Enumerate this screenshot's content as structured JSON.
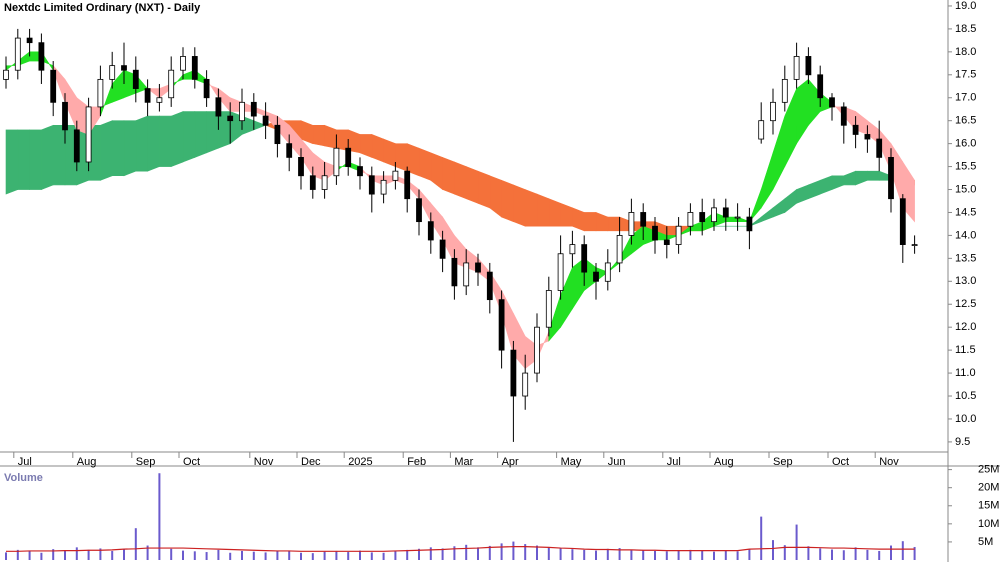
{
  "chart_data": [
    {
      "type": "candlestick",
      "title": "Nextdc Limited Ordinary (NXT) - Daily",
      "categories": [
        null,
        "Jul",
        null,
        null,
        null,
        null,
        "Aug",
        null,
        null,
        null,
        null,
        "Sep",
        null,
        null,
        null,
        "Oct",
        null,
        null,
        null,
        null,
        null,
        "Nov",
        null,
        null,
        null,
        "Dec",
        null,
        null,
        null,
        "2025",
        null,
        null,
        null,
        null,
        "Feb",
        null,
        null,
        null,
        "Mar",
        null,
        null,
        null,
        "Apr",
        null,
        null,
        null,
        null,
        "May",
        null,
        null,
        null,
        "Jun",
        null,
        null,
        null,
        null,
        "Jul",
        null,
        null,
        null,
        "Aug",
        null,
        null,
        null,
        null,
        "Sep",
        null,
        null,
        null,
        null,
        "Oct",
        null,
        null,
        null,
        "Nov",
        null,
        null,
        null
      ],
      "open": [
        17.4,
        17.6,
        18.3,
        18.2,
        17.6,
        16.9,
        16.3,
        15.6,
        16.8,
        17.4,
        17.7,
        17.6,
        17.2,
        16.9,
        17.0,
        17.6,
        17.9,
        17.4,
        17.0,
        16.6,
        16.5,
        16.9,
        16.6,
        16.4,
        16.0,
        15.7,
        15.3,
        15.0,
        15.3,
        15.9,
        15.5,
        15.3,
        14.9,
        15.2,
        15.4,
        14.8,
        14.3,
        13.9,
        13.5,
        12.9,
        13.4,
        13.2,
        12.6,
        11.5,
        10.5,
        11.0,
        12.0,
        12.8,
        13.6,
        13.8,
        13.2,
        13.0,
        13.4,
        14.0,
        14.5,
        14.2,
        13.9,
        13.8,
        14.2,
        14.5,
        14.3,
        14.6,
        14.4,
        14.4,
        16.1,
        16.5,
        16.9,
        17.4,
        17.9,
        17.5,
        17.0,
        16.8,
        16.4,
        16.2,
        16.1,
        15.7,
        14.8,
        13.8
      ],
      "high": [
        17.9,
        18.5,
        18.5,
        18.4,
        17.8,
        17.1,
        16.5,
        17.0,
        17.7,
        18.0,
        18.2,
        17.9,
        17.4,
        17.3,
        17.9,
        18.1,
        18.1,
        17.6,
        17.2,
        16.9,
        17.2,
        17.1,
        16.9,
        16.6,
        16.2,
        15.9,
        15.5,
        15.6,
        16.2,
        16.1,
        15.7,
        15.5,
        15.4,
        15.6,
        15.5,
        15.0,
        14.5,
        14.1,
        13.7,
        13.7,
        13.6,
        13.4,
        12.8,
        11.7,
        11.4,
        12.3,
        13.1,
        14.0,
        14.1,
        14.0,
        13.4,
        13.7,
        14.4,
        14.8,
        14.7,
        14.4,
        14.2,
        14.4,
        14.7,
        14.8,
        14.8,
        14.8,
        14.7,
        14.6,
        16.9,
        17.2,
        17.7,
        18.2,
        18.1,
        17.7,
        17.1,
        16.9,
        16.6,
        16.4,
        16.5,
        15.9,
        14.9,
        14.0
      ],
      "low": [
        17.2,
        17.4,
        17.9,
        17.3,
        16.6,
        16.0,
        15.4,
        15.4,
        16.6,
        17.2,
        17.3,
        16.9,
        16.6,
        16.7,
        16.8,
        17.4,
        17.2,
        16.8,
        16.3,
        16.0,
        16.3,
        16.3,
        16.1,
        15.7,
        15.4,
        15.0,
        14.8,
        14.8,
        15.1,
        15.3,
        15.0,
        14.5,
        14.7,
        15.0,
        14.5,
        14.0,
        13.6,
        13.2,
        12.6,
        12.7,
        12.9,
        12.3,
        11.1,
        9.5,
        10.2,
        10.8,
        11.8,
        12.6,
        13.3,
        12.9,
        12.6,
        12.8,
        13.2,
        13.8,
        13.9,
        13.6,
        13.5,
        13.6,
        14.0,
        14.0,
        14.1,
        14.1,
        14.1,
        13.7,
        16.0,
        16.2,
        16.7,
        17.2,
        17.3,
        16.8,
        16.5,
        16.0,
        15.9,
        15.8,
        15.4,
        14.5,
        13.4,
        13.6
      ],
      "close": [
        17.6,
        18.3,
        18.2,
        17.6,
        16.9,
        16.3,
        15.6,
        16.8,
        17.4,
        17.7,
        17.6,
        17.2,
        16.9,
        17.0,
        17.6,
        17.9,
        17.4,
        17.0,
        16.6,
        16.5,
        16.9,
        16.6,
        16.4,
        16.0,
        15.7,
        15.3,
        15.0,
        15.3,
        15.9,
        15.5,
        15.3,
        14.9,
        15.2,
        15.4,
        14.8,
        14.3,
        13.9,
        13.5,
        12.9,
        13.4,
        13.2,
        12.6,
        11.5,
        10.5,
        11.0,
        12.0,
        12.8,
        13.6,
        13.8,
        13.2,
        13.0,
        13.4,
        14.0,
        14.5,
        14.2,
        13.9,
        13.8,
        14.2,
        14.5,
        14.3,
        14.6,
        14.4,
        14.4,
        14.1,
        16.5,
        16.9,
        17.4,
        17.9,
        17.5,
        17.0,
        16.8,
        16.4,
        16.2,
        16.1,
        15.7,
        14.8,
        13.8,
        13.8
      ],
      "up_color": "#ffffff",
      "down_color": "#000000",
      "bands": [
        {
          "fast": [
            16.3,
            16.3,
            16.3,
            16.3,
            16.4,
            16.4,
            16.4,
            16.4,
            16.4,
            16.5,
            16.5,
            16.5,
            16.6,
            16.6,
            16.6,
            16.7,
            16.7,
            16.7,
            16.7,
            16.7,
            16.6,
            16.5,
            16.4,
            16.3,
            16.2,
            16.1,
            16.0,
            15.95,
            15.9,
            15.85,
            15.8,
            15.7,
            15.6,
            15.5,
            15.4,
            15.3,
            15.2,
            15.0,
            14.9,
            14.8,
            14.7,
            14.6,
            14.4,
            14.3,
            14.2,
            14.2,
            14.2,
            14.2,
            14.2,
            14.1,
            14.1,
            14.1,
            14.1,
            14.1,
            14.1,
            14.0,
            14.0,
            14.0,
            14.1,
            14.1,
            14.2,
            14.2,
            14.2,
            14.2,
            14.4,
            14.6,
            14.8,
            15.0,
            15.1,
            15.2,
            15.3,
            15.3,
            15.4,
            15.4,
            15.4,
            15.3,
            15.2,
            15.1
          ],
          "slow": [
            14.9,
            15.0,
            15.0,
            15.0,
            15.1,
            15.1,
            15.1,
            15.2,
            15.2,
            15.3,
            15.3,
            15.4,
            15.4,
            15.5,
            15.5,
            15.6,
            15.7,
            15.8,
            15.9,
            16.0,
            16.2,
            16.3,
            16.4,
            16.5,
            16.5,
            16.5,
            16.4,
            16.4,
            16.3,
            16.3,
            16.2,
            16.2,
            16.1,
            16.0,
            16.0,
            15.9,
            15.8,
            15.7,
            15.6,
            15.5,
            15.4,
            15.3,
            15.2,
            15.1,
            15.0,
            14.9,
            14.8,
            14.7,
            14.6,
            14.5,
            14.5,
            14.4,
            14.4,
            14.3,
            14.3,
            14.3,
            14.2,
            14.2,
            14.2,
            14.2,
            14.2,
            14.2,
            14.2,
            14.2,
            14.3,
            14.4,
            14.5,
            14.7,
            14.8,
            14.9,
            15.0,
            15.1,
            15.1,
            15.2,
            15.2,
            15.2,
            15.2,
            15.2
          ],
          "rising_color": "#3cb371",
          "falling_color": "#f4713a"
        },
        {
          "fast": [
            17.6,
            17.8,
            18.0,
            18.0,
            17.6,
            16.9,
            16.3,
            16.2,
            16.6,
            17.3,
            17.6,
            17.5,
            17.2,
            17.0,
            17.2,
            17.5,
            17.6,
            17.4,
            17.0,
            16.7,
            16.7,
            16.7,
            16.6,
            16.3,
            16.0,
            15.7,
            15.3,
            15.2,
            15.4,
            15.6,
            15.5,
            15.2,
            15.1,
            15.2,
            15.1,
            14.8,
            14.3,
            13.9,
            13.4,
            13.3,
            13.2,
            13.0,
            12.3,
            11.4,
            11.1,
            11.3,
            11.9,
            12.7,
            13.3,
            13.5,
            13.3,
            13.2,
            13.5,
            14.0,
            14.2,
            14.1,
            14.0,
            14.0,
            14.2,
            14.3,
            14.5,
            14.4,
            14.4,
            14.3,
            15.0,
            15.8,
            16.6,
            17.2,
            17.4,
            17.1,
            16.9,
            16.6,
            16.3,
            16.2,
            16.0,
            15.4,
            14.6,
            14.3
          ],
          "slow": [
            17.7,
            17.7,
            17.8,
            17.8,
            17.7,
            17.4,
            17.0,
            16.8,
            16.8,
            16.9,
            17.0,
            17.1,
            17.2,
            17.2,
            17.3,
            17.4,
            17.4,
            17.3,
            17.2,
            17.0,
            16.9,
            16.8,
            16.7,
            16.6,
            16.4,
            16.1,
            15.8,
            15.6,
            15.5,
            15.5,
            15.4,
            15.3,
            15.3,
            15.3,
            15.2,
            15.0,
            14.7,
            14.4,
            14.0,
            13.7,
            13.5,
            13.2,
            12.8,
            12.3,
            11.8,
            11.6,
            11.7,
            12.0,
            12.4,
            12.8,
            13.0,
            13.2,
            13.4,
            13.6,
            13.8,
            13.9,
            13.9,
            14.0,
            14.1,
            14.1,
            14.2,
            14.3,
            14.3,
            14.3,
            14.6,
            15.0,
            15.5,
            16.0,
            16.4,
            16.7,
            16.8,
            16.8,
            16.7,
            16.5,
            16.3,
            16.0,
            15.6,
            15.2
          ],
          "rising_color": "#22e022",
          "falling_color": "#ffaaaa"
        }
      ],
      "ylim": [
        9.28,
        19.13
      ],
      "yticks": [
        9.5,
        {
          "value": 10,
          "label": "10.0"
        },
        10.5,
        {
          "value": 11,
          "label": "11.0"
        },
        11.5,
        {
          "value": 12,
          "label": "12.0"
        },
        12.5,
        {
          "value": 13,
          "label": "13.0"
        },
        13.5,
        {
          "value": 14,
          "label": "14.0"
        },
        14.5,
        {
          "value": 15,
          "label": "15.0"
        },
        15.5,
        {
          "value": 16,
          "label": "16.0"
        },
        16.5,
        {
          "value": 17,
          "label": "17.0"
        },
        17.5,
        {
          "value": 18,
          "label": "18.0"
        },
        18.5,
        {
          "value": 19,
          "label": "19.0"
        }
      ]
    },
    {
      "type": "bar",
      "title": "Volume",
      "color": "#6a5acd",
      "values": [
        2.1,
        2.8,
        2.4,
        2.0,
        3.0,
        2.6,
        3.5,
        2.8,
        3.2,
        2.5,
        3.0,
        8.8,
        4.0,
        24.0,
        3.1,
        2.6,
        2.4,
        2.2,
        2.8,
        2.0,
        2.5,
        2.3,
        2.1,
        2.6,
        2.4,
        2.0,
        1.9,
        2.3,
        2.5,
        2.2,
        2.6,
        2.1,
        2.0,
        2.4,
        2.8,
        3.1,
        3.5,
        3.2,
        3.8,
        4.2,
        3.5,
        3.9,
        4.6,
        5.1,
        4.4,
        4.0,
        3.6,
        3.2,
        3.0,
        2.8,
        2.6,
        3.1,
        3.3,
        2.9,
        2.7,
        2.5,
        2.4,
        2.6,
        2.8,
        2.5,
        2.3,
        2.6,
        2.4,
        2.9,
        12.0,
        5.5,
        4.1,
        9.8,
        3.8,
        3.2,
        2.9,
        2.7,
        3.5,
        2.8,
        2.5,
        4.0,
        5.2,
        3.6
      ],
      "ma": {
        "color": "#cc2222",
        "values": [
          2.4,
          2.4,
          2.5,
          2.5,
          2.5,
          2.6,
          2.6,
          2.7,
          2.7,
          2.8,
          3.0,
          3.1,
          3.3,
          3.3,
          3.3,
          3.3,
          3.2,
          3.1,
          3.0,
          2.9,
          2.8,
          2.7,
          2.6,
          2.5,
          2.5,
          2.4,
          2.4,
          2.4,
          2.4,
          2.4,
          2.4,
          2.4,
          2.4,
          2.5,
          2.6,
          2.7,
          2.8,
          2.9,
          3.1,
          3.2,
          3.3,
          3.5,
          3.6,
          3.7,
          3.7,
          3.6,
          3.5,
          3.3,
          3.2,
          3.0,
          2.9,
          2.9,
          2.8,
          2.8,
          2.7,
          2.7,
          2.6,
          2.6,
          2.6,
          2.6,
          2.6,
          2.6,
          2.6,
          3.0,
          3.1,
          3.2,
          3.5,
          3.5,
          3.5,
          3.4,
          3.3,
          3.3,
          3.2,
          3.1,
          3.0,
          3.0,
          3.0,
          3.0
        ]
      },
      "ylim": [
        0,
        26
      ],
      "yticks": [
        {
          "value": 5,
          "label": "5M"
        },
        {
          "value": 10,
          "label": "10M"
        },
        {
          "value": 15,
          "label": "15M"
        },
        {
          "value": 20,
          "label": "20M"
        },
        {
          "value": 25,
          "label": "25M"
        }
      ]
    }
  ]
}
